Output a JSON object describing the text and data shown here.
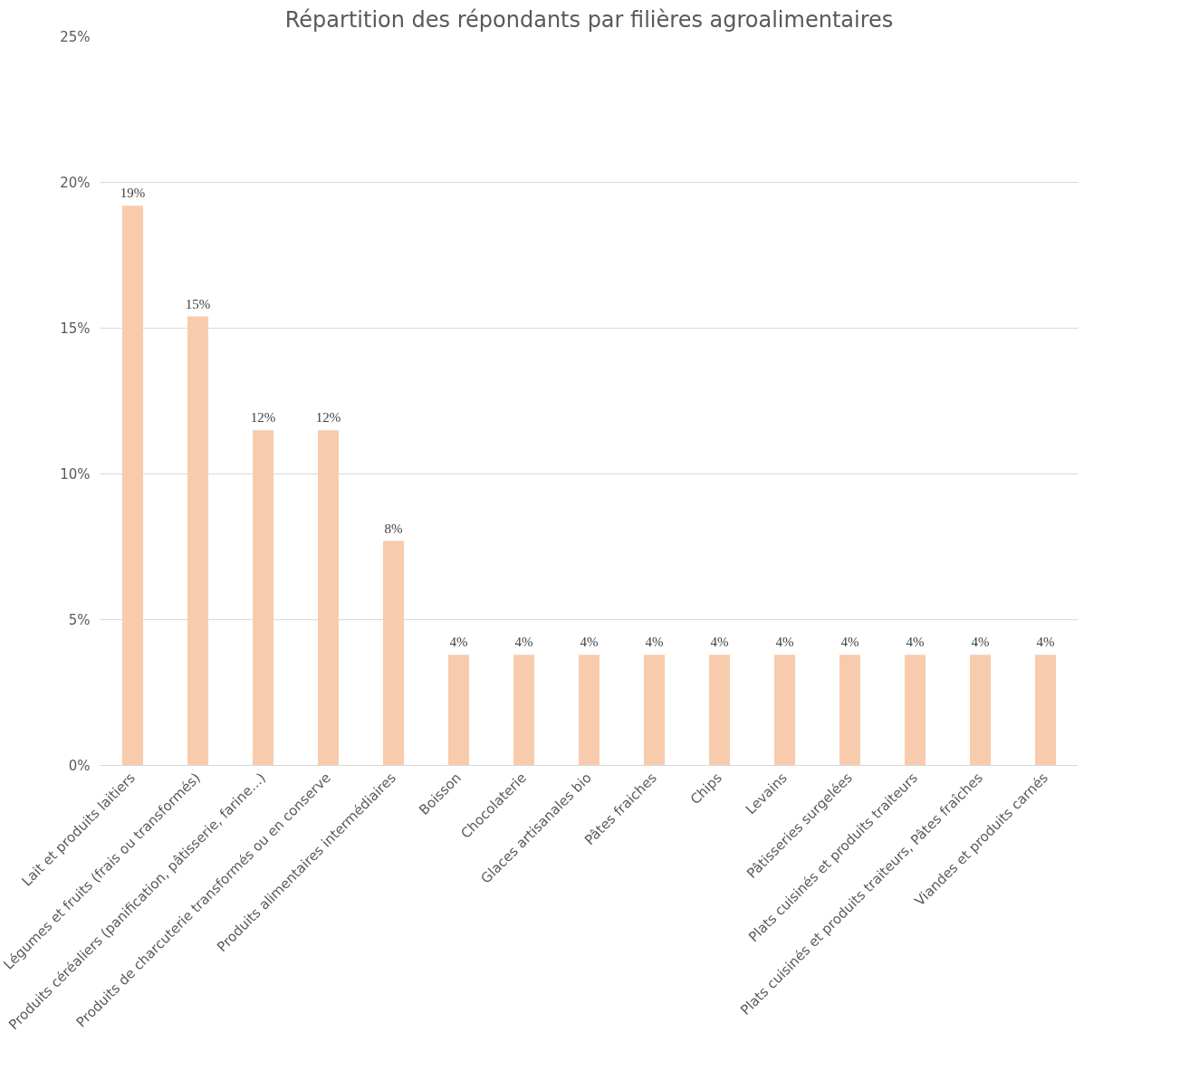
{
  "chart_data": {
    "type": "bar",
    "title": "Répartition des répondants par filières agroalimentaires",
    "categories": [
      "Lait et produits laitiers",
      "Légumes et fruits (frais ou transformés)",
      "Produits céréaliers (panification, pâtisserie, farine...)",
      "Produits de charcuterie transformés ou en conserve",
      "Produits alimentaires intermédiaires",
      "Boisson",
      "Chocolaterie",
      "Glaces artisanales bio",
      "Pâtes fraiches",
      "Chips",
      "Levains",
      "Pâtisseries surgelées",
      "Plats cuisinés et produits traiteurs",
      "Plats cuisinés et produits traiteurs, Pâtes fraîches",
      "Viandes et produits carnés"
    ],
    "values": [
      19.2,
      15.4,
      11.5,
      11.5,
      7.7,
      3.8,
      3.8,
      3.8,
      3.8,
      3.8,
      3.8,
      3.8,
      3.8,
      3.8,
      3.8
    ],
    "value_labels": [
      "19%",
      "15%",
      "12%",
      "12%",
      "8%",
      "4%",
      "4%",
      "4%",
      "4%",
      "4%",
      "4%",
      "4%",
      "4%",
      "4%",
      "4%"
    ],
    "color": "#f8cbad",
    "ylim": [
      0,
      25
    ],
    "yticks": [
      {
        "value": 0,
        "label": "0%"
      },
      {
        "value": 5,
        "label": "5%"
      },
      {
        "value": 10,
        "label": "10%"
      },
      {
        "value": 15,
        "label": "15%"
      },
      {
        "value": 20,
        "label": "20%"
      },
      {
        "value": 25,
        "label": "25%"
      }
    ],
    "grid": "y"
  }
}
